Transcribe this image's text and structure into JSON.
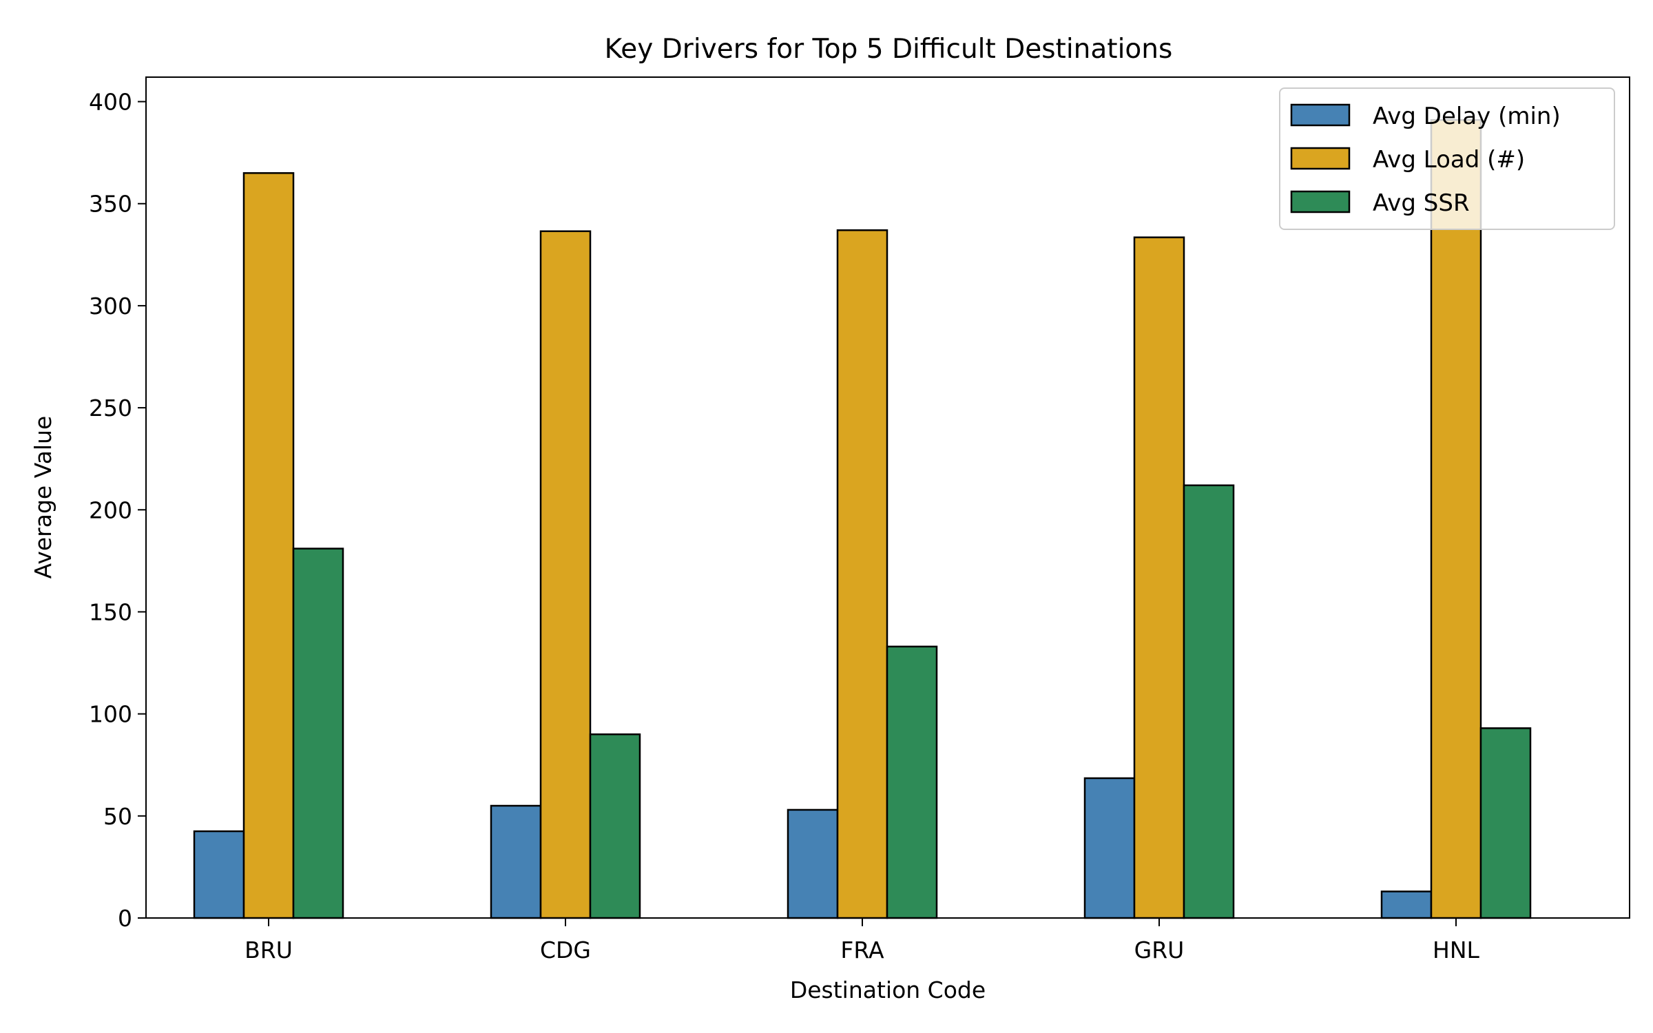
{
  "chart_data": {
    "type": "bar",
    "title": "Key Drivers for Top 5 Difficult Destinations",
    "xlabel": "Destination Code",
    "ylabel": "Average Value",
    "categories": [
      "BRU",
      "CDG",
      "FRA",
      "GRU",
      "HNL"
    ],
    "series": [
      {
        "name": "Avg Delay (min)",
        "color": "#4682b4",
        "values": [
          42.5,
          55,
          53,
          68.5,
          13
        ]
      },
      {
        "name": "Avg Load (#)",
        "color": "#daa520",
        "values": [
          365,
          336.5,
          337,
          333.5,
          391
        ]
      },
      {
        "name": "Avg SSR",
        "color": "#2e8b57",
        "values": [
          181,
          90,
          133,
          212,
          93
        ]
      }
    ],
    "ylim": [
      0,
      412
    ],
    "yticks": [
      0,
      50,
      100,
      150,
      200,
      250,
      300,
      350,
      400
    ],
    "grid": false,
    "legend_position": "top-right"
  }
}
